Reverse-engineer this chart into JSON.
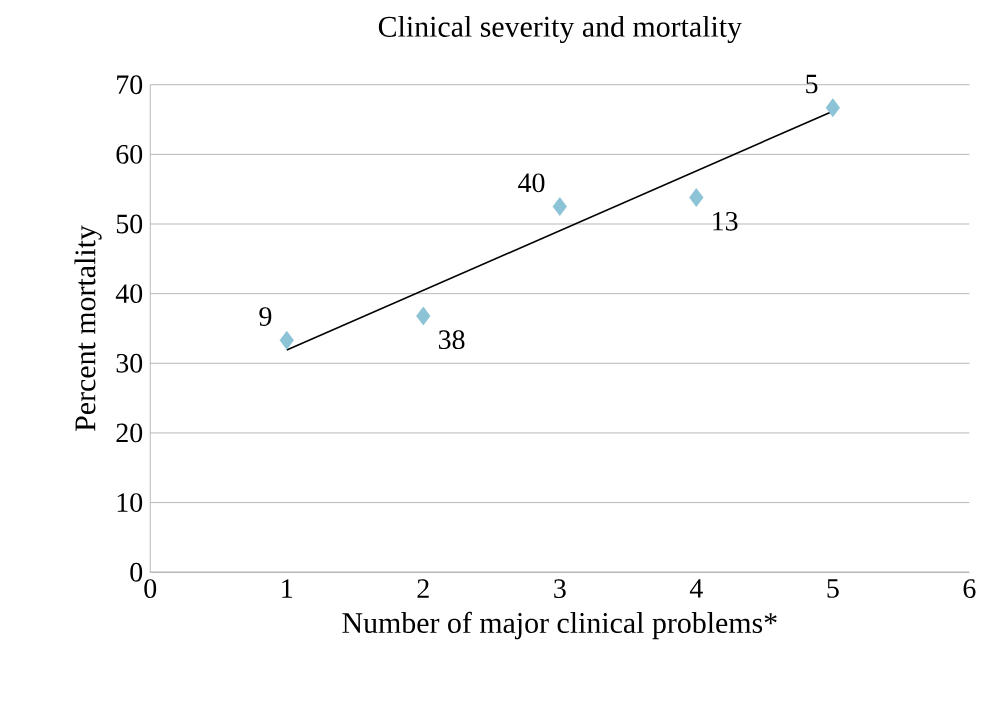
{
  "chart_data": {
    "type": "scatter",
    "title": "Clinical severity and mortality",
    "xlabel": "Number of major clinical problems*",
    "ylabel": "Percent mortality",
    "xlim": [
      0,
      6
    ],
    "xticks": [
      0,
      1,
      2,
      3,
      4,
      5,
      6
    ],
    "ylim": [
      0,
      70
    ],
    "yticks": [
      0,
      10,
      20,
      30,
      40,
      50,
      60,
      70
    ],
    "grid": "y",
    "marker": "diamond",
    "series": [
      {
        "color": "#8cc3d6",
        "x": [
          1,
          2,
          3,
          4,
          5
        ],
        "values": [
          33.3,
          36.8,
          52.5,
          53.8,
          66.7
        ]
      },
      {
        "type": "line",
        "color": "#000000",
        "marker": "none",
        "x": [
          1,
          5
        ],
        "values": [
          31.9,
          66.2
        ]
      }
    ],
    "annotations": [
      {
        "text": "9",
        "x": 1,
        "y": 33.3
      },
      {
        "text": "38",
        "x": 2,
        "y": 36.8
      },
      {
        "text": "40",
        "x": 3,
        "y": 52.5
      },
      {
        "text": "13",
        "x": 4,
        "y": 53.8
      },
      {
        "text": "5",
        "x": 5,
        "y": 66.7
      }
    ]
  }
}
